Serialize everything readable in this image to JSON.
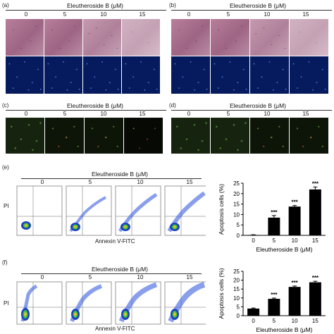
{
  "panels": {
    "a": {
      "label": "(a)",
      "title": "Eleutheroside B (μM)",
      "doses": [
        "0",
        "5",
        "10",
        "15"
      ]
    },
    "b": {
      "label": "(b)",
      "title": "Eleutheroside B (μM)",
      "doses": [
        "0",
        "5",
        "10",
        "15"
      ]
    },
    "c": {
      "label": "(c)",
      "title": "Eleutheroside B (μM)",
      "doses": [
        "0",
        "5",
        "10",
        "15"
      ]
    },
    "d": {
      "label": "(d)",
      "title": "Eleutheroside B (μM)",
      "doses": [
        "0",
        "5",
        "10",
        "15"
      ]
    },
    "e": {
      "label": "(e)",
      "title": "Eleutheroside B (μM)",
      "doses": [
        "0",
        "5",
        "10",
        "15"
      ],
      "y_label": "PI",
      "x_label": "Annexin V-FITC"
    },
    "f": {
      "label": "(f)",
      "title": "Eleutheroside B (μM)",
      "doses": [
        "0",
        "5",
        "10",
        "15"
      ],
      "y_label": "PI",
      "x_label": "Annexin V-FITC"
    }
  },
  "chart_data": [
    {
      "type": "bar",
      "panel": "e",
      "categories": [
        "0",
        "5",
        "10",
        "15"
      ],
      "values": [
        0.2,
        8.5,
        13.8,
        22
      ],
      "errors": [
        0.1,
        1.0,
        0.5,
        1.2
      ],
      "significance": [
        "",
        "***",
        "***",
        "***"
      ],
      "xlabel": "Eleutheroside B (μM)",
      "ylabel": "Apoptosis cells (%)",
      "ylim": [
        0,
        25
      ],
      "yticks": [
        0,
        5,
        10,
        15,
        20,
        25
      ],
      "bar_color": "#000000"
    },
    {
      "type": "bar",
      "panel": "f",
      "categories": [
        "0",
        "5",
        "10",
        "15"
      ],
      "values": [
        4,
        9.5,
        16.2,
        18.8
      ],
      "errors": [
        0.3,
        0.4,
        0.5,
        0.6
      ],
      "significance": [
        "",
        "***",
        "***",
        "***"
      ],
      "xlabel": "Eleutheroside B (μM)",
      "ylabel": "Apoptosis cells (%)",
      "ylim": [
        0,
        25
      ],
      "yticks": [
        0,
        5,
        10,
        15,
        20,
        25
      ],
      "bar_color": "#000000"
    }
  ]
}
